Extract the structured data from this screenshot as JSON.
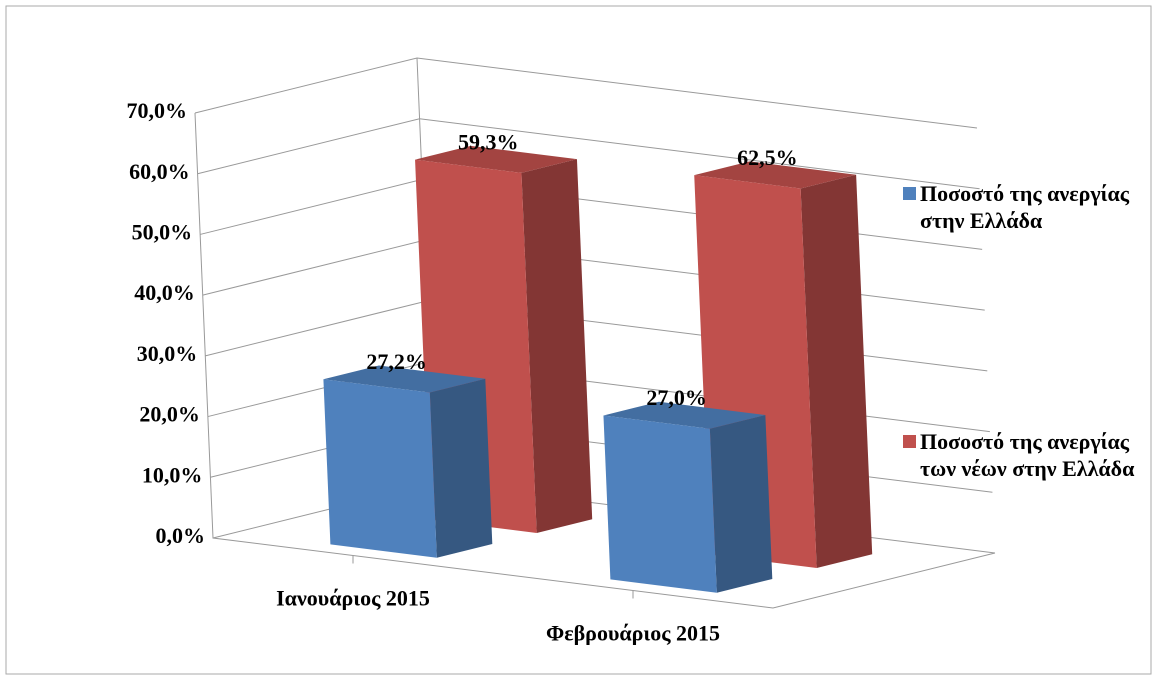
{
  "chart_data": {
    "type": "bar3d",
    "categories": [
      "Ιανουάριος 2015",
      "Φεβρουάριος 2015"
    ],
    "series": [
      {
        "name": "Ποσοστό της ανεργίας στην Ελλάδα",
        "color": "#4f81bd",
        "values": [
          27.2,
          27.0
        ],
        "value_labels": [
          "27,2%",
          "27,0%"
        ]
      },
      {
        "name": "Ποσοστό της ανεργίας των νέων στην Ελλάδα",
        "color": "#c0504d",
        "values": [
          59.3,
          62.5
        ],
        "value_labels": [
          "59,3%",
          "62,5%"
        ]
      }
    ],
    "ylim": [
      0,
      70
    ],
    "yticks": [
      {
        "value": 0,
        "label": "0,0%"
      },
      {
        "value": 10,
        "label": "10,0%"
      },
      {
        "value": 20,
        "label": "20,0%"
      },
      {
        "value": 30,
        "label": "30,0%"
      },
      {
        "value": 40,
        "label": "40,0%"
      },
      {
        "value": 50,
        "label": "50,0%"
      },
      {
        "value": 60,
        "label": "60,0%"
      },
      {
        "value": 70,
        "label": "70,0%"
      }
    ],
    "grid": true,
    "legend": "right"
  }
}
